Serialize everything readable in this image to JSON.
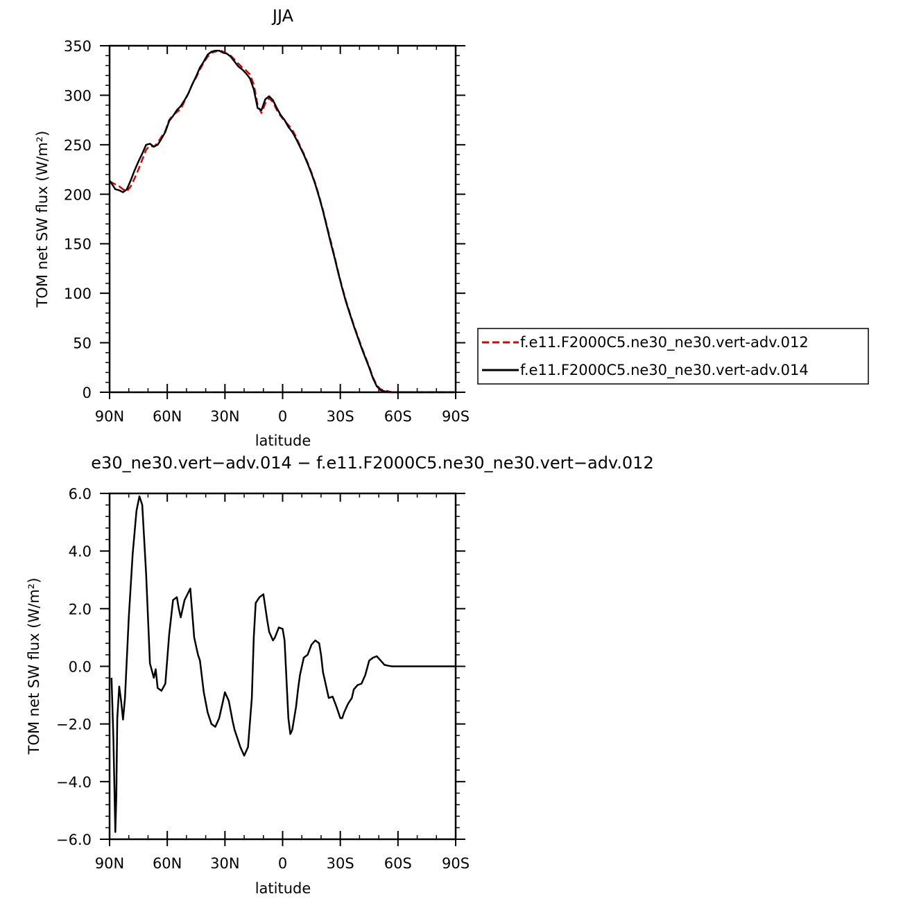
{
  "chart_data": [
    {
      "type": "line",
      "title": "JJA",
      "xlabel": "latitude",
      "ylabel": "TOM net SW flux (W/m²)",
      "xlim": [
        90,
        -90
      ],
      "ylim": [
        0,
        350
      ],
      "x_ticks": [
        90,
        60,
        30,
        0,
        -30,
        -60,
        -90
      ],
      "x_tick_labels": [
        "90N",
        "60N",
        "30N",
        "0",
        "30S",
        "60S",
        "90S"
      ],
      "y_ticks": [
        0,
        50,
        100,
        150,
        200,
        250,
        300,
        350
      ],
      "y_tick_labels": [
        "0",
        "50",
        "100",
        "150",
        "200",
        "250",
        "300",
        "350"
      ],
      "grid": false,
      "legend_position": "right",
      "series": [
        {
          "name": "f.e11.F2000C5.ne30_ne30.vert-adv.012",
          "color": "#e00000",
          "style": "dashed",
          "x": [
            90,
            87,
            85,
            83,
            81,
            79,
            77,
            75,
            73,
            71,
            69,
            67,
            65,
            63,
            61,
            59,
            57,
            55,
            53,
            51,
            49,
            47,
            45,
            43,
            41,
            39,
            37,
            35,
            33,
            31,
            29,
            27,
            25,
            23,
            21,
            19,
            17,
            15,
            13,
            11,
            9,
            7,
            5,
            3,
            1,
            -1,
            -3,
            -5,
            -7,
            -9,
            -11,
            -13,
            -15,
            -17,
            -19,
            -21,
            -23,
            -25,
            -27,
            -29,
            -31,
            -33,
            -35,
            -37,
            -39,
            -41,
            -43,
            -45,
            -47,
            -49,
            -51,
            -53,
            -55,
            -57,
            -59,
            -61,
            -63,
            -65,
            -67,
            -69,
            -71,
            -73,
            -75,
            -77,
            -79,
            -81,
            -83,
            -85,
            -87,
            -89
          ],
          "y": [
            213,
            210,
            208,
            205,
            203,
            208,
            216,
            225,
            235,
            245,
            249,
            248,
            252,
            258,
            264,
            275,
            280,
            283,
            286,
            294,
            302,
            311,
            318,
            326,
            333,
            339,
            343,
            344,
            346,
            344,
            342,
            340,
            336,
            332,
            328,
            325,
            321,
            311,
            290,
            282,
            292,
            297,
            293,
            285,
            279,
            274,
            270,
            265,
            258,
            249,
            241,
            232,
            222,
            211,
            198,
            184,
            168,
            153,
            137,
            121,
            106,
            92,
            80,
            68,
            57,
            46,
            36,
            26,
            15,
            7,
            3,
            2,
            1,
            0,
            0,
            0,
            0,
            0,
            0,
            0,
            0,
            0,
            0,
            0,
            0,
            0,
            0,
            0,
            0,
            0
          ]
        },
        {
          "name": "f.e11.F2000C5.ne30_ne30.vert-adv.014",
          "color": "#000000",
          "style": "solid",
          "x": [
            90,
            87,
            85,
            83,
            81,
            79,
            77,
            75,
            73,
            71,
            69,
            67,
            65,
            63,
            61,
            59,
            57,
            55,
            53,
            51,
            49,
            47,
            45,
            43,
            41,
            39,
            37,
            35,
            33,
            31,
            29,
            27,
            25,
            23,
            21,
            19,
            17,
            15,
            13,
            11,
            9,
            7,
            5,
            3,
            1,
            -1,
            -3,
            -5,
            -7,
            -9,
            -11,
            -13,
            -15,
            -17,
            -19,
            -21,
            -23,
            -25,
            -27,
            -29,
            -31,
            -33,
            -35,
            -37,
            -39,
            -41,
            -43,
            -45,
            -47,
            -49,
            -51,
            -53,
            -55,
            -57,
            -59,
            -61,
            -63,
            -65,
            -67,
            -69,
            -71,
            -73,
            -75,
            -77,
            -79,
            -81,
            -83,
            -85,
            -87,
            -89
          ],
          "y": [
            214,
            205,
            204,
            202,
            205,
            214,
            224,
            233,
            241,
            250,
            251,
            248,
            250,
            256,
            263,
            274,
            279,
            285,
            289,
            295,
            302,
            311,
            319,
            328,
            334,
            341,
            344,
            345,
            345,
            343,
            342,
            339,
            334,
            329,
            326,
            322,
            317,
            306,
            287,
            285,
            296,
            299,
            295,
            287,
            280,
            275,
            268,
            263,
            256,
            248,
            240,
            231,
            221,
            210,
            197,
            183,
            167,
            151,
            136,
            120,
            105,
            91,
            79,
            67,
            56,
            45,
            35,
            25,
            14,
            6,
            2,
            1,
            0,
            0,
            0,
            0,
            0,
            0,
            0,
            0,
            0,
            0,
            0,
            0,
            0,
            0,
            0,
            0,
            0,
            0
          ]
        }
      ]
    },
    {
      "type": "line",
      "title": "e30_ne30.vert−adv.014 − f.e11.F2000C5.ne30_ne30.vert−adv.012",
      "xlabel": "latitude",
      "ylabel": "TOM net SW flux (W/m²)",
      "xlim": [
        90,
        -90
      ],
      "ylim": [
        -6,
        6
      ],
      "x_ticks": [
        90,
        60,
        30,
        0,
        -30,
        -60,
        -90
      ],
      "x_tick_labels": [
        "90N",
        "60N",
        "30N",
        "0",
        "30S",
        "60S",
        "90S"
      ],
      "y_ticks": [
        -6,
        -4,
        -2,
        0,
        2,
        4,
        6
      ],
      "y_tick_labels": [
        "−6.0",
        "−4.0",
        "−2.0",
        "0.0",
        "2.0",
        "4.0",
        "6.0"
      ],
      "grid": false,
      "series": [
        {
          "color": "#000000",
          "style": "solid",
          "x": [
            89,
            88,
            87,
            86.5,
            86,
            85,
            84,
            83,
            82,
            80,
            78,
            76,
            74.5,
            73,
            71,
            69,
            67,
            66,
            65,
            63,
            61,
            59,
            57,
            55,
            54,
            53,
            51,
            49.5,
            48,
            46,
            44,
            43,
            41,
            39,
            37,
            35,
            33,
            31,
            30,
            28,
            26,
            25,
            24,
            22,
            20,
            18,
            16,
            15,
            14,
            12,
            10,
            8,
            7,
            5,
            4,
            2,
            0,
            -1,
            -3,
            -4,
            -5,
            -7,
            -8,
            -9,
            -11,
            -13,
            -15,
            -17,
            -19,
            -20,
            -21,
            -22,
            -24,
            -26,
            -28,
            -30,
            -31,
            -32,
            -34,
            -36,
            -37,
            -39,
            -41,
            -43,
            -45,
            -47,
            -49,
            -51,
            -53,
            -55,
            -57,
            -58,
            -59,
            -61,
            -63,
            -66,
            -70,
            -75,
            -80,
            -85,
            -90
          ],
          "y": [
            -0.4,
            -2.5,
            -5.75,
            -4.5,
            -1.8,
            -0.7,
            -1.2,
            -1.85,
            -1.1,
            1.7,
            3.9,
            5.4,
            5.9,
            5.6,
            3.2,
            0.1,
            -0.4,
            -0.1,
            -0.75,
            -0.85,
            -0.6,
            1.1,
            2.3,
            2.4,
            2.0,
            1.7,
            2.3,
            2.5,
            2.7,
            1.0,
            0.4,
            0.2,
            -0.9,
            -1.6,
            -2.0,
            -2.1,
            -1.8,
            -1.2,
            -0.9,
            -1.2,
            -1.9,
            -2.2,
            -2.4,
            -2.8,
            -3.1,
            -2.8,
            -1.1,
            1.0,
            2.2,
            2.4,
            2.5,
            1.6,
            1.2,
            0.9,
            1.0,
            1.35,
            1.3,
            0.9,
            -1.8,
            -2.35,
            -2.2,
            -1.4,
            -0.8,
            -0.3,
            0.3,
            0.4,
            0.75,
            0.9,
            0.8,
            0.4,
            -0.2,
            -0.5,
            -1.1,
            -1.05,
            -1.4,
            -1.8,
            -1.8,
            -1.6,
            -1.3,
            -1.1,
            -0.8,
            -0.65,
            -0.6,
            -0.3,
            0.2,
            0.3,
            0.35,
            0.2,
            0.05,
            0.02,
            0.0,
            0.0,
            0.0,
            0.0,
            0.0,
            0.0,
            0.0,
            0.0,
            0.0,
            0.0,
            0.0
          ]
        }
      ]
    }
  ]
}
